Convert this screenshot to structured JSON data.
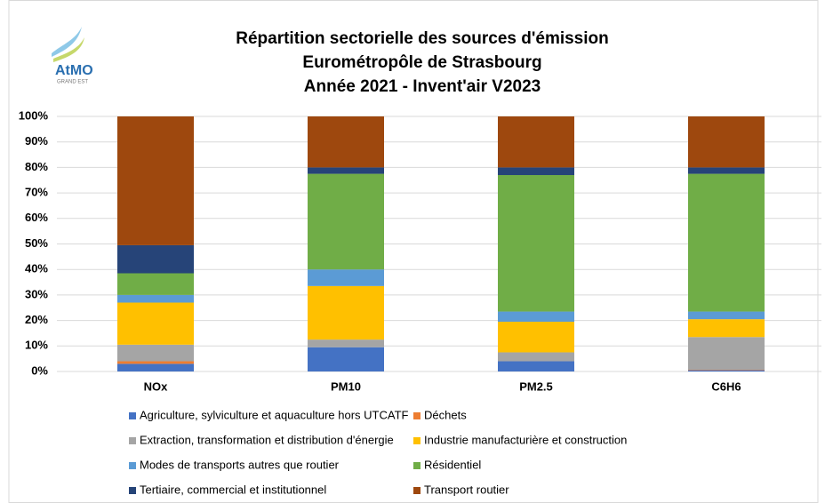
{
  "chart_data": {
    "type": "stacked_bar",
    "title": [
      "Répartition sectorielle des sources d'émission",
      "Eurométropôle de Strasbourg",
      "Année 2021 - Invent'air V2023"
    ],
    "logo": {
      "name": "AtMO",
      "region": "GRAND EST"
    },
    "categories": [
      "NOx",
      "PM10",
      "PM2.5",
      "C6H6"
    ],
    "series": [
      {
        "name": "Agriculture, sylviculture et aquaculture hors UTCATF",
        "color": "#4472c4",
        "values": [
          3,
          9.5,
          4,
          0.5
        ]
      },
      {
        "name": "Déchets",
        "color": "#ed7d31",
        "values": [
          1,
          0,
          0,
          0.2
        ]
      },
      {
        "name": "Extraction, transformation et distribution d'énergie",
        "color": "#a5a5a5",
        "values": [
          6.5,
          3,
          3.5,
          12.8
        ]
      },
      {
        "name": "Industrie manufacturière et construction",
        "color": "#ffc000",
        "values": [
          16.5,
          21,
          12,
          7
        ]
      },
      {
        "name": "Modes de transports autres que routier",
        "color": "#5b9bd5",
        "values": [
          3,
          6.5,
          4,
          3
        ]
      },
      {
        "name": "Résidentiel",
        "color": "#70ad47",
        "values": [
          8.5,
          37.5,
          53.5,
          54
        ]
      },
      {
        "name": "Tertiaire, commercial et institutionnel",
        "color": "#264478",
        "values": [
          11,
          2.5,
          3,
          2.5
        ]
      },
      {
        "name": "Transport routier",
        "color": "#9e480e",
        "values": [
          50.5,
          20,
          20,
          20
        ]
      }
    ],
    "ylim": [
      0,
      100
    ],
    "yticks": [
      {
        "value": 0,
        "label": "0%"
      },
      {
        "value": 10,
        "label": "10%"
      },
      {
        "value": 20,
        "label": "20%"
      },
      {
        "value": 30,
        "label": "30%"
      },
      {
        "value": 40,
        "label": "40%"
      },
      {
        "value": 50,
        "label": "50%"
      },
      {
        "value": 60,
        "label": "60%"
      },
      {
        "value": 70,
        "label": "70%"
      },
      {
        "value": 80,
        "label": "80%"
      },
      {
        "value": 90,
        "label": "90%"
      },
      {
        "value": 100,
        "label": "100%"
      }
    ],
    "grid": true,
    "legend": "bottom"
  }
}
